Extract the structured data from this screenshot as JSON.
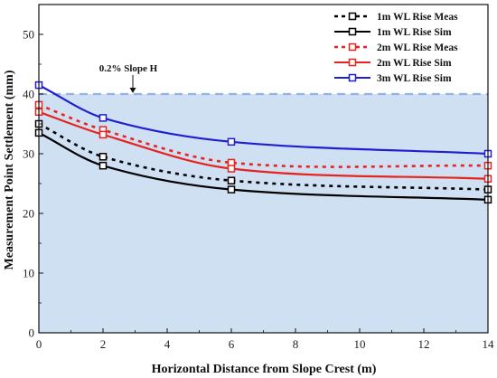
{
  "chart_data": {
    "type": "line",
    "title": "",
    "xlabel": "Horizontal Distance from Slope Crest (m)",
    "ylabel": "Measurement Point Settlement (mm)",
    "xlim": [
      0,
      14
    ],
    "ylim": [
      0,
      55
    ],
    "xticks": [
      0,
      2,
      4,
      6,
      8,
      10,
      12,
      14
    ],
    "yticks": [
      0,
      10,
      20,
      30,
      40,
      50
    ],
    "grid": false,
    "legend_position": "top-right",
    "reference_line": {
      "y": 40,
      "label": "0.2% Slope H",
      "color": "#8fb4e8"
    },
    "shaded_region": {
      "y_from": 0,
      "y_to": 40,
      "color": "#cfe0f3"
    },
    "series": [
      {
        "name": "1m WL Rise Meas",
        "color": "#000000",
        "style": "dashed",
        "x": [
          0,
          2,
          6,
          14
        ],
        "y": [
          35.0,
          29.5,
          25.5,
          24.0
        ]
      },
      {
        "name": "1m WL Rise Sim",
        "color": "#000000",
        "style": "solid",
        "x": [
          0,
          2,
          6,
          14
        ],
        "y": [
          33.5,
          28.0,
          24.0,
          22.3
        ]
      },
      {
        "name": "2m WL Rise Meas",
        "color": "#e8231f",
        "style": "dashed",
        "x": [
          0,
          2,
          6,
          14
        ],
        "y": [
          38.2,
          34.0,
          28.5,
          28.0
        ]
      },
      {
        "name": "2m WL Rise Sim",
        "color": "#e8231f",
        "style": "solid",
        "x": [
          0,
          2,
          6,
          14
        ],
        "y": [
          37.0,
          33.2,
          27.5,
          25.8
        ]
      },
      {
        "name": "3m WL Rise Sim",
        "color": "#1f1fd1",
        "style": "solid",
        "x": [
          0,
          2,
          6,
          14
        ],
        "y": [
          41.5,
          36.0,
          32.0,
          30.0
        ]
      }
    ]
  }
}
